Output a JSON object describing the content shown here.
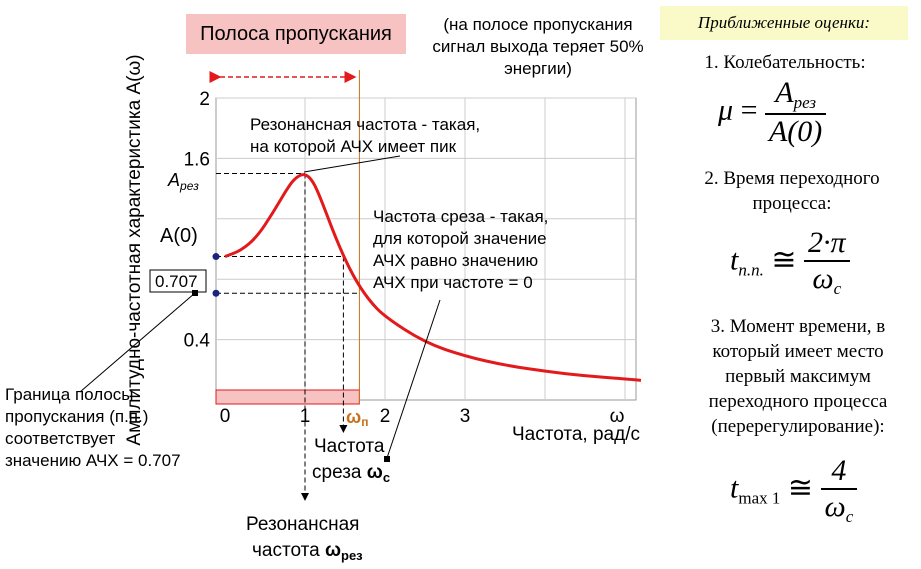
{
  "header": {
    "band_label": "Полоса пропускания",
    "band_note": "(на полосе пропускания сигнал выхода теряет 50% энергии)",
    "approx_title": "Приближенные оценки:"
  },
  "estimates": {
    "item1": "1. Колебательность:",
    "mu": "μ",
    "eq": "=",
    "a_rez_num": "A",
    "a_rez_sub": "рез",
    "a0_den": "A(0)",
    "item2": "2. Время переходного процесса:",
    "tpp": "t",
    "tpp_sub": "п.п.",
    "approx": "≅",
    "num2": "2·π",
    "omega_c": "ω",
    "c_sub": "c",
    "item3": "3. Момент времени, в который имеет место первый максимум переходного процесса (перерегулирование):",
    "tmax": "t",
    "tmax_sub": "max 1",
    "num4": "4"
  },
  "chart_data": {
    "type": "line",
    "title": "",
    "xlabel": "Частота, рад/с",
    "ylabel": "Амплитудно-частотная характеристика A(ω)",
    "x_ticks": [
      "0",
      "1",
      "2",
      "3",
      "ω"
    ],
    "y_ticks": [
      "2",
      "1.6",
      "0.4"
    ],
    "xlim": [
      0,
      5.2
    ],
    "ylim": [
      0,
      2
    ],
    "grid": true,
    "series": [
      {
        "color": "#e31a1c",
        "x": [
          0,
          0.2,
          0.4,
          0.6,
          0.8,
          0.9,
          1.0,
          1.1,
          1.2,
          1.4,
          1.6,
          1.8,
          2.0,
          2.5,
          3.0,
          3.5,
          4.0,
          4.5,
          5.0,
          5.2
        ],
        "y": [
          0.95,
          0.99,
          1.08,
          1.24,
          1.42,
          1.48,
          1.5,
          1.45,
          1.33,
          1.05,
          0.82,
          0.66,
          0.55,
          0.38,
          0.29,
          0.23,
          0.19,
          0.16,
          0.14,
          0.13
        ]
      }
    ],
    "a_rez": 1.5,
    "a0": 0.95,
    "level_0707": 0.707,
    "omega_rez": 1.0,
    "omega_c": 1.48,
    "omega_p": 1.68
  },
  "labels": {
    "a_rez": "A",
    "a_rez_sub": "рез",
    "a0": "A(0)",
    "v0707": "0.707",
    "omega_p": "ω",
    "omega_p_sub": "п",
    "resonance_def_1": "Резонансная частота - такая,",
    "resonance_def_2": "на которой АЧХ имеет пик",
    "cutoff_def_1": "Частота среза - такая,",
    "cutoff_def_2": "для которой значение",
    "cutoff_def_3": "АЧХ равно значению",
    "cutoff_def_4": "АЧХ при частоте = 0",
    "boundary_1": "Граница полосы",
    "boundary_2": "пропускания (п.п.)",
    "boundary_3": "соответствует",
    "boundary_4": "значению АЧХ = 0.707",
    "cutoff_1": "Частота",
    "cutoff_2": "среза ",
    "cutoff_omega": "ω",
    "cutoff_sub": "c",
    "res_1": "Резонансная",
    "res_2": "частота ",
    "res_omega": "ω",
    "res_sub": "рез"
  }
}
